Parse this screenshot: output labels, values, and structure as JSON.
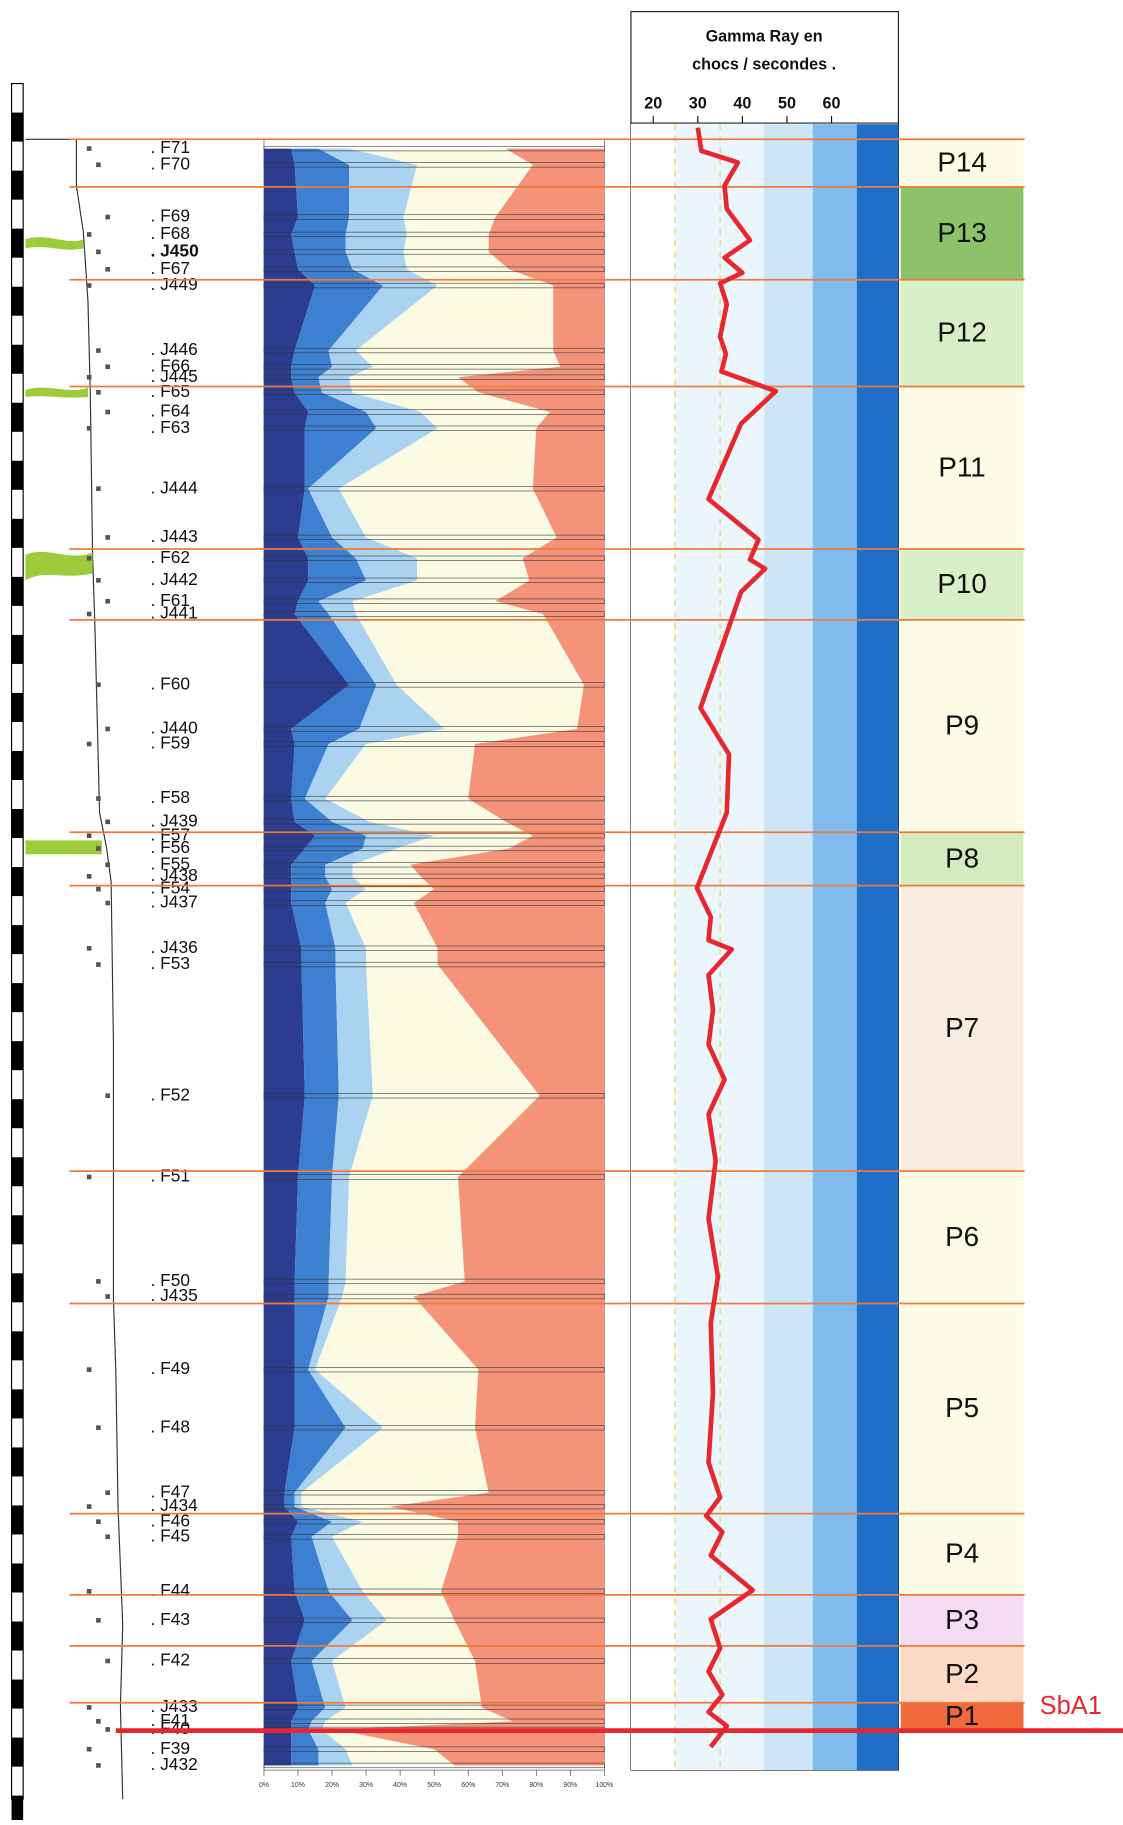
{
  "samples": [
    ". F71",
    ". F70",
    ". F69",
    ". F68",
    ". J450",
    ". F67",
    ". J449",
    ". J446",
    ". F66",
    ". J445",
    ". F65",
    ". F64",
    ". F63",
    ". J444",
    ". J443",
    ". F62",
    ". J442",
    ". F61",
    ". J441",
    ". F60",
    ". J440",
    ". F59",
    ". F58",
    ". J439",
    ". F57",
    ". F56",
    ". F55",
    ". J438",
    ". F54",
    ". J437",
    ". J436",
    ". F53",
    ". F52",
    ". F51",
    ". F50",
    ". J435",
    ". F49",
    ". F48",
    ". F47",
    ". J434",
    ". F46",
    ". F45",
    ". F44",
    ". F43",
    ". F42",
    ". J433",
    ". F41",
    ". F40",
    ". F39",
    ". J432"
  ],
  "composition": {
    "type": "stacked-area",
    "xlim": [
      0,
      100
    ],
    "xticks": [
      {
        "value": 0,
        "label": "0%"
      },
      {
        "value": 10,
        "label": "10%"
      },
      {
        "value": 20,
        "label": "20%"
      },
      {
        "value": 30,
        "label": "30%"
      },
      {
        "value": 40,
        "label": "40%"
      },
      {
        "value": 50,
        "label": "50%"
      },
      {
        "value": 60,
        "label": "60%"
      },
      {
        "value": 70,
        "label": "70%"
      },
      {
        "value": 80,
        "label": "80%"
      },
      {
        "value": 90,
        "label": "90%"
      },
      {
        "value": 100,
        "label": "100%"
      }
    ],
    "series": [
      {
        "color": "#2c3d8f",
        "values": [
          8,
          9,
          10,
          8,
          9,
          10,
          15,
          9,
          8,
          8,
          9,
          13,
          12,
          12,
          10,
          13,
          13,
          10,
          9,
          25,
          8,
          9,
          8,
          9,
          15,
          12,
          8,
          8,
          8,
          8,
          11,
          11,
          12,
          10,
          9,
          9,
          9,
          9,
          6,
          6,
          10,
          8,
          9,
          12,
          8,
          10,
          8,
          8,
          8,
          8
        ]
      },
      {
        "color": "#3d7fd0",
        "values": [
          8,
          16,
          15,
          16,
          15,
          16,
          20,
          10,
          12,
          8,
          8,
          17,
          21,
          1,
          10,
          14,
          17,
          6,
          10,
          8,
          20,
          10,
          4,
          11,
          15,
          17,
          10,
          10,
          12,
          10,
          10,
          10,
          10,
          10,
          10,
          10,
          4,
          15,
          3,
          3,
          10,
          6,
          10,
          14,
          6,
          8,
          6,
          5,
          8,
          8
        ]
      },
      {
        "color": "#a9d3f0",
        "values": [
          9,
          20,
          16,
          18,
          17,
          16,
          16,
          8,
          12,
          9,
          9,
          16,
          18,
          9,
          10,
          18,
          15,
          10,
          8,
          6,
          25,
          11,
          6,
          11,
          20,
          10,
          8,
          8,
          10,
          6,
          9,
          9,
          10,
          5,
          5,
          4,
          2,
          11,
          2,
          2,
          9,
          6,
          10,
          10,
          6,
          6,
          4,
          4,
          8,
          10
        ]
      },
      {
        "color": "#fbfbe4",
        "values": [
          46,
          34,
          27,
          24,
          25,
          30,
          34,
          58,
          55,
          32,
          37,
          38,
          29,
          57,
          56,
          31,
          33,
          42,
          55,
          55,
          39,
          32,
          42,
          40,
          29,
          33,
          17,
          20,
          20,
          20,
          21,
          21,
          49,
          32,
          35,
          21,
          48,
          27,
          55,
          26,
          28,
          37,
          23,
          20,
          42,
          40,
          55,
          4,
          26,
          30
        ]
      },
      {
        "color": "#f4937a",
        "values": [
          29,
          21,
          32,
          34,
          34,
          28,
          15,
          15,
          13,
          43,
          37,
          16,
          20,
          21,
          14,
          24,
          22,
          32,
          18,
          6,
          8,
          38,
          40,
          29,
          21,
          28,
          57,
          54,
          50,
          56,
          49,
          49,
          19,
          43,
          41,
          56,
          37,
          38,
          34,
          63,
          43,
          43,
          48,
          44,
          38,
          36,
          27,
          79,
          50,
          44
        ]
      }
    ]
  },
  "gamma_ray": {
    "type": "line",
    "title": [
      "Gamma Ray en",
      "chocs / secondes ."
    ],
    "xlim": [
      15,
      75
    ],
    "xticks": [
      20,
      30,
      40,
      50,
      60
    ],
    "color": "#e8262d",
    "values": [
      30,
      30.8,
      39,
      36,
      36.5,
      41.7,
      36,
      40,
      35,
      36.5,
      35,
      36.3,
      35.3,
      47.5,
      39.7,
      32.4,
      43.6,
      41.7,
      45.1,
      39.7,
      37,
      30.6,
      37,
      36.5,
      29.8,
      32.9,
      32.4,
      37.6,
      32.4,
      33.4,
      32.4,
      36,
      32.4,
      34,
      32.4,
      34.5,
      32.9,
      33.4,
      32.4,
      35,
      31.9,
      35.5,
      32.9,
      42.3,
      32.9,
      35,
      32.4,
      35.5,
      32.4,
      36.5,
      32.9
    ]
  },
  "parasequences": [
    {
      "label": "P14",
      "color": "#fbfbe6"
    },
    {
      "label": "P13",
      "color": "#8dc26a"
    },
    {
      "label": "P12",
      "color": "#d9efc8"
    },
    {
      "label": "P11",
      "color": "#fbfbe6"
    },
    {
      "label": "P10",
      "color": "#d9efc8"
    },
    {
      "label": "P9",
      "color": "#fbfbe6"
    },
    {
      "label": "P8",
      "color": "#d2ecc0"
    },
    {
      "label": "P7",
      "color": "#f9ede1"
    },
    {
      "label": "P6",
      "color": "#fbfbe6"
    },
    {
      "label": "P5",
      "color": "#fbfbe6"
    },
    {
      "label": "P4",
      "color": "#fbfbe6"
    },
    {
      "label": "P3",
      "color": "#f6dcf2"
    },
    {
      "label": "P2",
      "color": "#fbd9c5"
    },
    {
      "label": "P1",
      "color": "#f06a3e"
    }
  ],
  "boundary_label": "SbA1"
}
